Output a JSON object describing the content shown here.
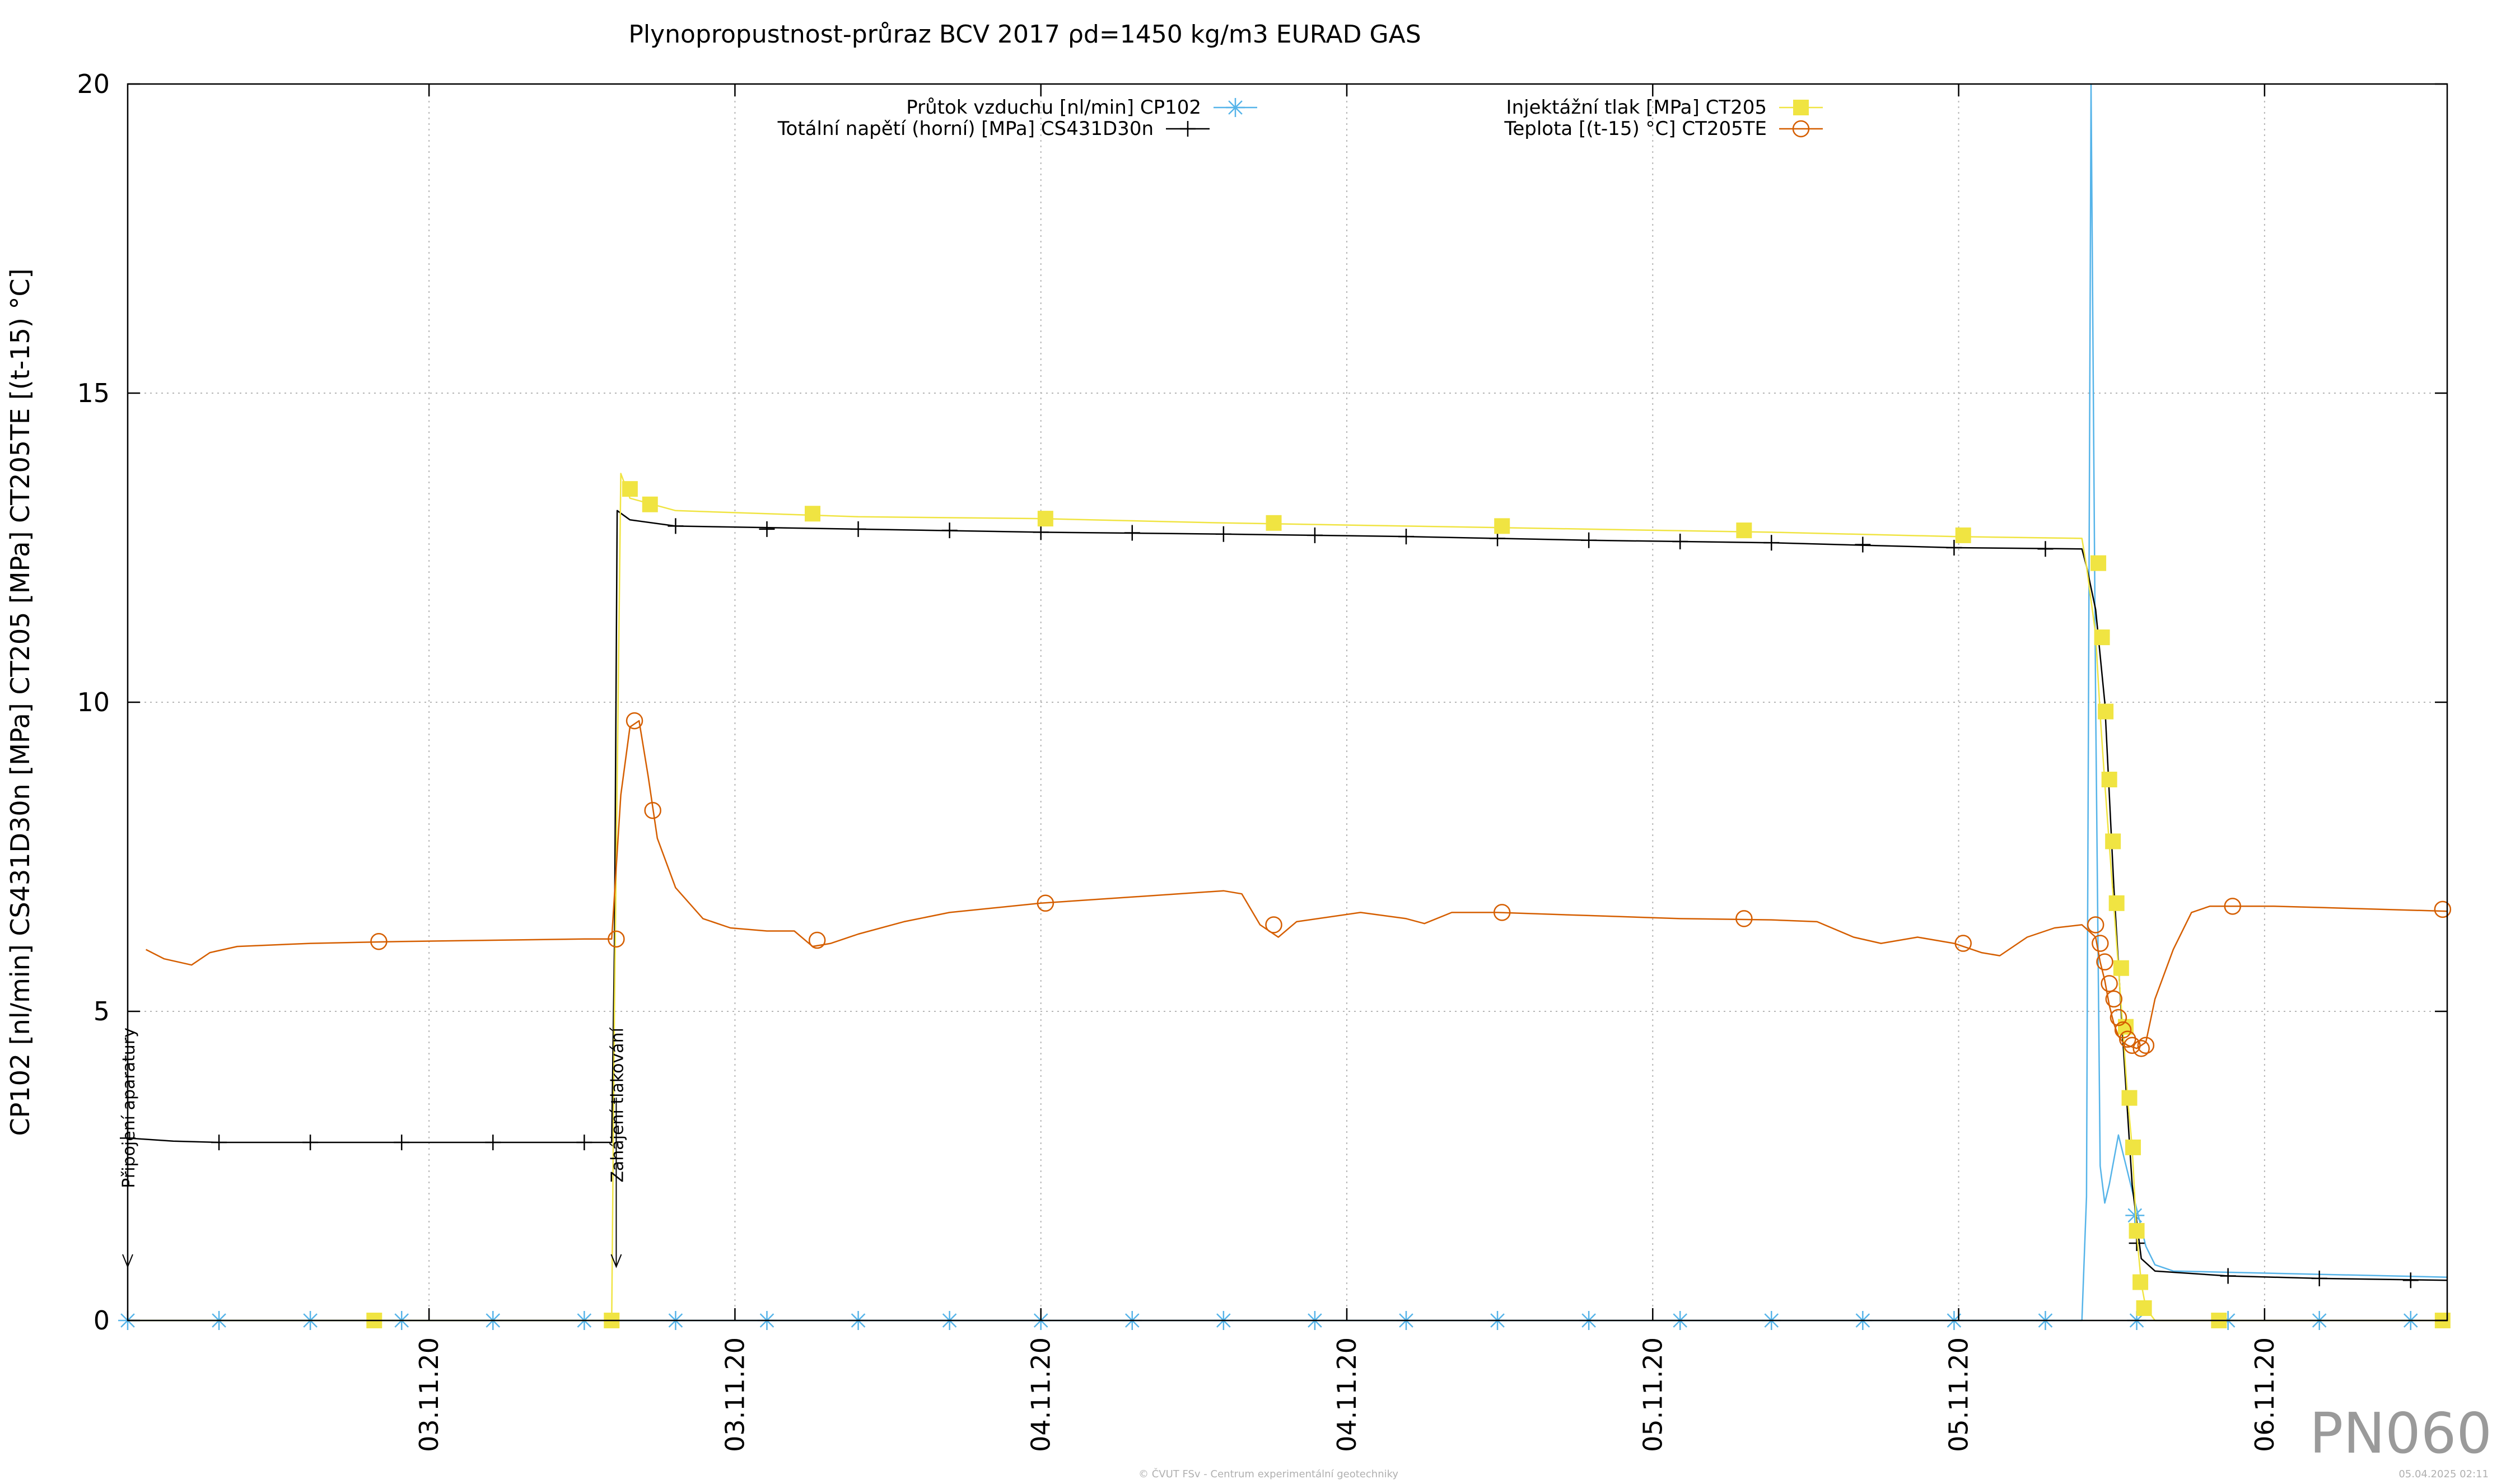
{
  "chart_data": {
    "type": "line",
    "title": "Plynopropustnost-průraz BCV 2017 ρd=1450 kg/m3 EURAD GAS",
    "ylabel": "CP102 [nl/min] CS431D30n [MPa] CT205 [MPa] CT205TE [(t-15) °C]",
    "ylim": [
      0,
      20
    ],
    "yticks": [
      "0",
      "5",
      "10",
      "15",
      "20"
    ],
    "xlim": [
      0,
      25.4
    ],
    "xticks": [
      {
        "x": 3.3,
        "label": "03.11.20"
      },
      {
        "x": 6.65,
        "label": "03.11.20"
      },
      {
        "x": 10.0,
        "label": "04.11.20"
      },
      {
        "x": 13.35,
        "label": "04.11.20"
      },
      {
        "x": 16.7,
        "label": "05.11.20"
      },
      {
        "x": 20.05,
        "label": "05.11.20"
      },
      {
        "x": 23.4,
        "label": "06.11.20"
      }
    ],
    "grid": true,
    "legend_position": "top",
    "series": [
      {
        "name": "Průtok vzduchu [nl/min] CP102",
        "color": "#56b4e9",
        "marker": "star",
        "points": [
          [
            0,
            0
          ],
          [
            21.4,
            0
          ],
          [
            21.45,
            2
          ],
          [
            21.5,
            20
          ],
          [
            21.55,
            10
          ],
          [
            21.6,
            2.5
          ],
          [
            21.65,
            1.9
          ],
          [
            21.7,
            2.2
          ],
          [
            21.8,
            3
          ],
          [
            21.9,
            2.4
          ],
          [
            22.0,
            1.8
          ],
          [
            22.1,
            1.2
          ],
          [
            22.2,
            0.9
          ],
          [
            22.4,
            0.8
          ],
          [
            25.4,
            0.7
          ]
        ],
        "markers": [
          [
            0,
            0
          ],
          [
            1,
            0
          ],
          [
            2,
            0
          ],
          [
            3,
            0
          ],
          [
            4,
            0
          ],
          [
            5,
            0
          ],
          [
            6,
            0
          ],
          [
            7,
            0
          ],
          [
            8,
            0
          ],
          [
            9,
            0
          ],
          [
            10,
            0
          ],
          [
            11,
            0
          ],
          [
            12,
            0
          ],
          [
            13,
            0
          ],
          [
            14,
            0
          ],
          [
            15,
            0
          ],
          [
            16,
            0
          ],
          [
            17,
            0
          ],
          [
            18,
            0
          ],
          [
            19,
            0
          ],
          [
            20,
            0
          ],
          [
            21,
            0
          ],
          [
            21.98,
            1.7
          ],
          [
            22,
            0
          ],
          [
            23,
            0
          ],
          [
            24,
            0
          ],
          [
            25,
            0
          ]
        ]
      },
      {
        "name": "Totální napětí (horní) [MPa] CS431D30n",
        "color": "#000000",
        "marker": "plus",
        "points": [
          [
            0,
            2.95
          ],
          [
            0.5,
            2.9
          ],
          [
            1,
            2.88
          ],
          [
            5.3,
            2.88
          ],
          [
            5.33,
            6
          ],
          [
            5.36,
            13.1
          ],
          [
            5.5,
            12.95
          ],
          [
            6,
            12.85
          ],
          [
            8,
            12.8
          ],
          [
            10,
            12.75
          ],
          [
            12,
            12.72
          ],
          [
            14,
            12.68
          ],
          [
            16,
            12.62
          ],
          [
            18,
            12.58
          ],
          [
            20,
            12.5
          ],
          [
            21.4,
            12.48
          ],
          [
            21.45,
            12.2
          ],
          [
            21.55,
            11.5
          ],
          [
            21.65,
            10
          ],
          [
            21.75,
            7
          ],
          [
            21.85,
            4.5
          ],
          [
            21.95,
            2.2
          ],
          [
            22.05,
            1.0
          ],
          [
            22.2,
            0.8
          ],
          [
            23,
            0.72
          ],
          [
            24,
            0.68
          ],
          [
            25.4,
            0.65
          ]
        ],
        "markers": [
          [
            0,
            2.95
          ],
          [
            1,
            2.88
          ],
          [
            2,
            2.88
          ],
          [
            3,
            2.88
          ],
          [
            4,
            2.88
          ],
          [
            5,
            2.88
          ],
          [
            6,
            12.85
          ],
          [
            7,
            12.8
          ],
          [
            8,
            12.8
          ],
          [
            9,
            12.78
          ],
          [
            10,
            12.75
          ],
          [
            11,
            12.74
          ],
          [
            12,
            12.72
          ],
          [
            13,
            12.7
          ],
          [
            14,
            12.68
          ],
          [
            15,
            12.65
          ],
          [
            16,
            12.62
          ],
          [
            17,
            12.6
          ],
          [
            18,
            12.58
          ],
          [
            19,
            12.55
          ],
          [
            20,
            12.5
          ],
          [
            21,
            12.48
          ],
          [
            22,
            1.25
          ],
          [
            23,
            0.72
          ],
          [
            24,
            0.68
          ],
          [
            25,
            0.65
          ]
        ]
      },
      {
        "name": "Injektážní tlak [MPa] CT205",
        "color": "#f0e442",
        "marker": "square",
        "points": [
          [
            0,
            0
          ],
          [
            5.3,
            0
          ],
          [
            5.33,
            5
          ],
          [
            5.4,
            13.7
          ],
          [
            5.5,
            13.3
          ],
          [
            6,
            13.1
          ],
          [
            8,
            13.0
          ],
          [
            10,
            12.97
          ],
          [
            12,
            12.9
          ],
          [
            14,
            12.85
          ],
          [
            16,
            12.8
          ],
          [
            18,
            12.75
          ],
          [
            20,
            12.68
          ],
          [
            21.4,
            12.65
          ],
          [
            21.45,
            12.2
          ],
          [
            21.55,
            11.1
          ],
          [
            21.6,
            9.8
          ],
          [
            21.65,
            8.7
          ],
          [
            21.7,
            7.7
          ],
          [
            21.75,
            6.7
          ],
          [
            21.8,
            5.7
          ],
          [
            21.85,
            4.7
          ],
          [
            21.9,
            3.6
          ],
          [
            21.95,
            2.8
          ],
          [
            22.0,
            1.4
          ],
          [
            22.05,
            0.6
          ],
          [
            22.1,
            0.2
          ],
          [
            22.2,
            0
          ],
          [
            25.4,
            0
          ]
        ],
        "markers": [
          [
            2.7,
            0
          ],
          [
            5.3,
            0
          ],
          [
            5.5,
            13.45
          ],
          [
            5.72,
            13.2
          ],
          [
            7.5,
            13.05
          ],
          [
            10.05,
            12.97
          ],
          [
            12.55,
            12.9
          ],
          [
            15.05,
            12.85
          ],
          [
            17.7,
            12.78
          ],
          [
            20.1,
            12.7
          ],
          [
            21.58,
            12.25
          ],
          [
            21.62,
            11.05
          ],
          [
            21.66,
            9.85
          ],
          [
            21.7,
            8.75
          ],
          [
            21.74,
            7.75
          ],
          [
            21.78,
            6.75
          ],
          [
            21.83,
            5.7
          ],
          [
            21.88,
            4.75
          ],
          [
            21.92,
            3.6
          ],
          [
            21.96,
            2.8
          ],
          [
            22.0,
            1.45
          ],
          [
            22.04,
            0.62
          ],
          [
            22.08,
            0.2
          ],
          [
            22.9,
            0
          ],
          [
            25.35,
            0
          ]
        ]
      },
      {
        "name": "Teplota [(t-15) °C] CT205TE",
        "color": "#d55e00",
        "marker": "circle",
        "points": [
          [
            0.2,
            6.0
          ],
          [
            0.4,
            5.85
          ],
          [
            0.7,
            5.75
          ],
          [
            0.9,
            5.95
          ],
          [
            1.2,
            6.05
          ],
          [
            2,
            6.1
          ],
          [
            3,
            6.13
          ],
          [
            4,
            6.15
          ],
          [
            5,
            6.17
          ],
          [
            5.3,
            6.17
          ],
          [
            5.4,
            8.5
          ],
          [
            5.5,
            9.6
          ],
          [
            5.6,
            9.7
          ],
          [
            5.7,
            8.8
          ],
          [
            5.8,
            7.8
          ],
          [
            6,
            7.0
          ],
          [
            6.3,
            6.5
          ],
          [
            6.6,
            6.35
          ],
          [
            7,
            6.3
          ],
          [
            7.3,
            6.3
          ],
          [
            7.5,
            6.05
          ],
          [
            7.7,
            6.1
          ],
          [
            8,
            6.25
          ],
          [
            8.5,
            6.45
          ],
          [
            9,
            6.6
          ],
          [
            10,
            6.75
          ],
          [
            11,
            6.85
          ],
          [
            12,
            6.95
          ],
          [
            12.2,
            6.9
          ],
          [
            12.4,
            6.4
          ],
          [
            12.6,
            6.2
          ],
          [
            12.8,
            6.45
          ],
          [
            13.5,
            6.6
          ],
          [
            14,
            6.5
          ],
          [
            14.2,
            6.42
          ],
          [
            14.5,
            6.6
          ],
          [
            15,
            6.6
          ],
          [
            16,
            6.55
          ],
          [
            17,
            6.5
          ],
          [
            18,
            6.48
          ],
          [
            18.5,
            6.45
          ],
          [
            18.9,
            6.2
          ],
          [
            19.2,
            6.1
          ],
          [
            19.6,
            6.2
          ],
          [
            20,
            6.1
          ],
          [
            20.3,
            5.95
          ],
          [
            20.5,
            5.9
          ],
          [
            20.8,
            6.2
          ],
          [
            21.1,
            6.35
          ],
          [
            21.4,
            6.4
          ],
          [
            21.55,
            6.2
          ],
          [
            21.6,
            5.8
          ],
          [
            21.65,
            5.5
          ],
          [
            21.7,
            5.1
          ],
          [
            21.75,
            4.8
          ],
          [
            21.8,
            4.6
          ],
          [
            21.85,
            4.5
          ],
          [
            21.9,
            4.45
          ],
          [
            22.0,
            4.4
          ],
          [
            22.1,
            4.5
          ],
          [
            22.2,
            5.2
          ],
          [
            22.4,
            6.0
          ],
          [
            22.6,
            6.6
          ],
          [
            22.8,
            6.7
          ],
          [
            23.5,
            6.7
          ],
          [
            24,
            6.68
          ],
          [
            25.4,
            6.62
          ]
        ],
        "markers": [
          [
            2.75,
            6.13
          ],
          [
            5.35,
            6.17
          ],
          [
            5.55,
            9.7
          ],
          [
            5.75,
            8.25
          ],
          [
            7.55,
            6.15
          ],
          [
            10.05,
            6.75
          ],
          [
            12.55,
            6.4
          ],
          [
            15.05,
            6.6
          ],
          [
            17.7,
            6.5
          ],
          [
            20.1,
            6.1
          ],
          [
            21.55,
            6.4
          ],
          [
            21.6,
            6.1
          ],
          [
            21.65,
            5.8
          ],
          [
            21.7,
            5.45
          ],
          [
            21.75,
            5.2
          ],
          [
            21.8,
            4.9
          ],
          [
            21.85,
            4.7
          ],
          [
            21.9,
            4.55
          ],
          [
            21.95,
            4.45
          ],
          [
            22.05,
            4.4
          ],
          [
            22.1,
            4.45
          ],
          [
            23.05,
            6.7
          ],
          [
            25.35,
            6.65
          ]
        ]
      }
    ],
    "annotations": [
      {
        "x": 0,
        "text": "Připojení aparatury"
      },
      {
        "x": 5.35,
        "text": "Zahájení tlakování"
      }
    ]
  },
  "watermark": "PN060",
  "footer_center": "© ČVUT FSv - Centrum experimentální geotechniky",
  "footer_right": "05.04.2025 02:11"
}
